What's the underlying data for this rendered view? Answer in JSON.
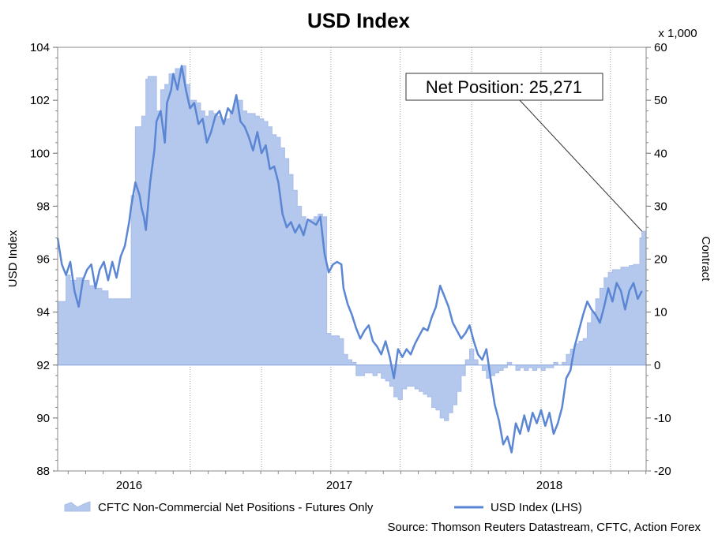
{
  "chart_data": {
    "type": "area",
    "title": "USD Index",
    "source": "Source: Thomson Reuters Datastream, CFTC, Action Forex",
    "left_axis": {
      "label": "USD Index",
      "min": 88,
      "max": 104,
      "ticks": [
        "88",
        "90",
        "92",
        "94",
        "96",
        "98",
        "100",
        "102",
        "104"
      ]
    },
    "right_axis": {
      "label": "Contract",
      "unit_label": "x 1,000",
      "min": -20,
      "max": 60,
      "ticks": [
        "-20",
        "-10",
        "0",
        "10",
        "20",
        "30",
        "40",
        "50",
        "60"
      ]
    },
    "x_axis": {
      "min": 2015.7,
      "max": 2018.5,
      "tick_labels": [
        "2016",
        "2017",
        "2018"
      ],
      "tick_values": [
        2016.0,
        2017.0,
        2018.0
      ]
    },
    "callout": {
      "label": "Net Position: 25,271",
      "value": 25.271,
      "date": 2018.48
    },
    "series": [
      {
        "name": "CFTC Non-Commercial Net Positions - Futures Only",
        "axis": "right",
        "style": "area",
        "color": "#b4c7ec",
        "edge": "#a9bde8",
        "points": [
          [
            2015.7,
            12.0
          ],
          [
            2015.74,
            17.0
          ],
          [
            2015.76,
            16.0
          ],
          [
            2015.79,
            16.5
          ],
          [
            2015.82,
            16.0
          ],
          [
            2015.85,
            15.0
          ],
          [
            2015.88,
            14.5
          ],
          [
            2015.91,
            14.0
          ],
          [
            2015.94,
            12.5
          ],
          [
            2015.97,
            12.5
          ],
          [
            2016.02,
            12.5
          ],
          [
            2016.03,
            12.5
          ],
          [
            2016.04,
            12.5
          ],
          [
            2016.05,
            32.0
          ],
          [
            2016.07,
            45.0
          ],
          [
            2016.09,
            45.0
          ],
          [
            2016.1,
            47.0
          ],
          [
            2016.12,
            54.0
          ],
          [
            2016.13,
            54.5
          ],
          [
            2016.15,
            54.5
          ],
          [
            2016.17,
            48.0
          ],
          [
            2016.19,
            52.0
          ],
          [
            2016.21,
            53.0
          ],
          [
            2016.23,
            55.0
          ],
          [
            2016.26,
            56.0
          ],
          [
            2016.29,
            56.5
          ],
          [
            2016.31,
            53.0
          ],
          [
            2016.33,
            50.0
          ],
          [
            2016.36,
            49.5
          ],
          [
            2016.38,
            48.0
          ],
          [
            2016.4,
            47.0
          ],
          [
            2016.42,
            48.0
          ],
          [
            2016.44,
            47.5
          ],
          [
            2016.46,
            47.0
          ],
          [
            2016.48,
            46.0
          ],
          [
            2016.5,
            46.5
          ],
          [
            2016.52,
            48.0
          ],
          [
            2016.54,
            50.0
          ],
          [
            2016.56,
            50.0
          ],
          [
            2016.58,
            48.0
          ],
          [
            2016.6,
            47.5
          ],
          [
            2016.62,
            47.5
          ],
          [
            2016.64,
            47.0
          ],
          [
            2016.66,
            46.5
          ],
          [
            2016.68,
            46.0
          ],
          [
            2016.7,
            45.0
          ],
          [
            2016.72,
            43.5
          ],
          [
            2016.74,
            43.0
          ],
          [
            2016.76,
            41.0
          ],
          [
            2016.78,
            39.0
          ],
          [
            2016.8,
            36.0
          ],
          [
            2016.82,
            33.0
          ],
          [
            2016.84,
            30.0
          ],
          [
            2016.86,
            28.0
          ],
          [
            2016.88,
            27.0
          ],
          [
            2016.9,
            27.5
          ],
          [
            2016.92,
            28.0
          ],
          [
            2016.94,
            28.5
          ],
          [
            2016.96,
            28.0
          ],
          [
            2016.98,
            6.0
          ],
          [
            2017.0,
            5.5
          ],
          [
            2017.02,
            5.5
          ],
          [
            2017.04,
            5.0
          ],
          [
            2017.06,
            2.0
          ],
          [
            2017.08,
            1.0
          ],
          [
            2017.1,
            0.5
          ],
          [
            2017.12,
            -2.0
          ],
          [
            2017.14,
            -2.0
          ],
          [
            2017.16,
            -1.5
          ],
          [
            2017.18,
            -1.5
          ],
          [
            2017.2,
            -2.0
          ],
          [
            2017.22,
            -1.5
          ],
          [
            2017.24,
            -2.5
          ],
          [
            2017.26,
            -3.0
          ],
          [
            2017.28,
            -4.0
          ],
          [
            2017.3,
            -6.0
          ],
          [
            2017.32,
            -6.5
          ],
          [
            2017.34,
            -4.5
          ],
          [
            2017.36,
            -4.0
          ],
          [
            2017.38,
            -4.0
          ],
          [
            2017.4,
            -4.5
          ],
          [
            2017.42,
            -5.0
          ],
          [
            2017.44,
            -5.5
          ],
          [
            2017.46,
            -6.0
          ],
          [
            2017.48,
            -8.0
          ],
          [
            2017.5,
            -8.5
          ],
          [
            2017.52,
            -10.0
          ],
          [
            2017.54,
            -10.5
          ],
          [
            2017.56,
            -9.0
          ],
          [
            2017.58,
            -7.5
          ],
          [
            2017.6,
            -5.0
          ],
          [
            2017.62,
            -2.0
          ],
          [
            2017.64,
            1.0
          ],
          [
            2017.66,
            3.0
          ],
          [
            2017.68,
            1.0
          ],
          [
            2017.7,
            0.0
          ],
          [
            2017.72,
            -1.0
          ],
          [
            2017.74,
            -2.5
          ],
          [
            2017.76,
            -2.0
          ],
          [
            2017.78,
            -1.5
          ],
          [
            2017.8,
            -1.0
          ],
          [
            2017.82,
            -0.5
          ],
          [
            2017.84,
            0.5
          ],
          [
            2017.86,
            0.0
          ],
          [
            2017.88,
            -1.0
          ],
          [
            2017.9,
            -0.5
          ],
          [
            2017.92,
            -1.0
          ],
          [
            2017.94,
            -0.5
          ],
          [
            2017.96,
            -1.0
          ],
          [
            2017.98,
            -0.5
          ],
          [
            2018.0,
            -1.0
          ],
          [
            2018.02,
            -0.5
          ],
          [
            2018.04,
            -0.5
          ],
          [
            2018.06,
            0.5
          ],
          [
            2018.08,
            0.0
          ],
          [
            2018.1,
            0.5
          ],
          [
            2018.12,
            2.0
          ],
          [
            2018.14,
            3.0
          ],
          [
            2018.16,
            4.0
          ],
          [
            2018.18,
            4.5
          ],
          [
            2018.2,
            5.0
          ],
          [
            2018.22,
            8.0
          ],
          [
            2018.24,
            10.0
          ],
          [
            2018.26,
            12.5
          ],
          [
            2018.28,
            14.5
          ],
          [
            2018.3,
            16.5
          ],
          [
            2018.32,
            17.5
          ],
          [
            2018.34,
            18.0
          ],
          [
            2018.36,
            18.0
          ],
          [
            2018.38,
            18.5
          ],
          [
            2018.4,
            18.5
          ],
          [
            2018.42,
            18.8
          ],
          [
            2018.44,
            19.0
          ],
          [
            2018.46,
            19.0
          ],
          [
            2018.47,
            24.0
          ],
          [
            2018.48,
            25.271
          ],
          [
            2018.5,
            25.271
          ]
        ]
      },
      {
        "name": "USD Index (LHS)",
        "axis": "left",
        "style": "line",
        "color": "#5b86d4",
        "points": [
          [
            2015.7,
            96.8
          ],
          [
            2015.72,
            95.8
          ],
          [
            2015.74,
            95.4
          ],
          [
            2015.76,
            95.9
          ],
          [
            2015.78,
            94.8
          ],
          [
            2015.8,
            94.2
          ],
          [
            2015.82,
            95.2
          ],
          [
            2015.84,
            95.6
          ],
          [
            2015.86,
            95.8
          ],
          [
            2015.88,
            94.9
          ],
          [
            2015.9,
            95.6
          ],
          [
            2015.92,
            95.9
          ],
          [
            2015.94,
            95.2
          ],
          [
            2015.96,
            95.9
          ],
          [
            2015.98,
            95.3
          ],
          [
            2016.0,
            96.1
          ],
          [
            2016.02,
            96.5
          ],
          [
            2016.04,
            97.4
          ],
          [
            2016.05,
            98.0
          ],
          [
            2016.07,
            98.9
          ],
          [
            2016.09,
            98.4
          ],
          [
            2016.1,
            97.9
          ],
          [
            2016.11,
            97.6
          ],
          [
            2016.12,
            97.1
          ],
          [
            2016.14,
            98.9
          ],
          [
            2016.16,
            100.1
          ],
          [
            2016.17,
            101.2
          ],
          [
            2016.19,
            101.6
          ],
          [
            2016.21,
            100.4
          ],
          [
            2016.22,
            101.9
          ],
          [
            2016.24,
            102.4
          ],
          [
            2016.25,
            103.0
          ],
          [
            2016.27,
            102.4
          ],
          [
            2016.29,
            103.3
          ],
          [
            2016.31,
            102.4
          ],
          [
            2016.33,
            101.7
          ],
          [
            2016.35,
            101.9
          ],
          [
            2016.37,
            101.1
          ],
          [
            2016.39,
            101.3
          ],
          [
            2016.41,
            100.4
          ],
          [
            2016.43,
            100.8
          ],
          [
            2016.45,
            101.4
          ],
          [
            2016.47,
            101.6
          ],
          [
            2016.49,
            101.1
          ],
          [
            2016.51,
            101.7
          ],
          [
            2016.53,
            101.5
          ],
          [
            2016.55,
            102.2
          ],
          [
            2016.57,
            101.2
          ],
          [
            2016.59,
            101.0
          ],
          [
            2016.61,
            100.6
          ],
          [
            2016.63,
            100.1
          ],
          [
            2016.65,
            100.8
          ],
          [
            2016.67,
            100.0
          ],
          [
            2016.69,
            100.3
          ],
          [
            2016.71,
            99.4
          ],
          [
            2016.73,
            99.5
          ],
          [
            2016.75,
            98.9
          ],
          [
            2016.77,
            97.7
          ],
          [
            2016.79,
            97.2
          ],
          [
            2016.81,
            97.4
          ],
          [
            2016.83,
            97.0
          ],
          [
            2016.85,
            97.3
          ],
          [
            2016.87,
            96.9
          ],
          [
            2016.89,
            97.5
          ],
          [
            2016.91,
            97.4
          ],
          [
            2016.93,
            97.3
          ],
          [
            2016.95,
            97.6
          ],
          [
            2016.97,
            96.2
          ],
          [
            2016.99,
            95.5
          ],
          [
            2017.01,
            95.8
          ],
          [
            2017.03,
            95.9
          ],
          [
            2017.05,
            95.8
          ],
          [
            2017.06,
            94.9
          ],
          [
            2017.08,
            94.3
          ],
          [
            2017.1,
            93.9
          ],
          [
            2017.12,
            93.4
          ],
          [
            2017.14,
            93.0
          ],
          [
            2017.16,
            93.3
          ],
          [
            2017.18,
            93.5
          ],
          [
            2017.2,
            92.9
          ],
          [
            2017.22,
            92.7
          ],
          [
            2017.24,
            92.4
          ],
          [
            2017.26,
            92.9
          ],
          [
            2017.28,
            92.3
          ],
          [
            2017.3,
            91.5
          ],
          [
            2017.32,
            92.6
          ],
          [
            2017.34,
            92.3
          ],
          [
            2017.36,
            92.6
          ],
          [
            2017.38,
            92.4
          ],
          [
            2017.4,
            92.8
          ],
          [
            2017.42,
            93.1
          ],
          [
            2017.44,
            93.4
          ],
          [
            2017.46,
            93.3
          ],
          [
            2017.48,
            93.8
          ],
          [
            2017.5,
            94.2
          ],
          [
            2017.52,
            95.0
          ],
          [
            2017.54,
            94.6
          ],
          [
            2017.56,
            94.2
          ],
          [
            2017.58,
            93.6
          ],
          [
            2017.6,
            93.3
          ],
          [
            2017.62,
            93.0
          ],
          [
            2017.64,
            93.2
          ],
          [
            2017.66,
            93.5
          ],
          [
            2017.68,
            92.9
          ],
          [
            2017.7,
            92.4
          ],
          [
            2017.72,
            92.2
          ],
          [
            2017.74,
            92.6
          ],
          [
            2017.76,
            91.5
          ],
          [
            2017.78,
            90.5
          ],
          [
            2017.8,
            89.9
          ],
          [
            2017.82,
            89.0
          ],
          [
            2017.84,
            89.3
          ],
          [
            2017.86,
            88.7
          ],
          [
            2017.88,
            89.8
          ],
          [
            2017.9,
            89.4
          ],
          [
            2017.92,
            90.1
          ],
          [
            2017.94,
            89.5
          ],
          [
            2017.96,
            90.2
          ],
          [
            2017.98,
            89.8
          ],
          [
            2018.0,
            90.3
          ],
          [
            2018.02,
            89.7
          ],
          [
            2018.04,
            90.2
          ],
          [
            2018.06,
            89.4
          ],
          [
            2018.08,
            89.8
          ],
          [
            2018.1,
            90.4
          ],
          [
            2018.12,
            91.5
          ],
          [
            2018.14,
            91.8
          ],
          [
            2018.16,
            92.7
          ],
          [
            2018.18,
            93.3
          ],
          [
            2018.2,
            93.9
          ],
          [
            2018.22,
            94.4
          ],
          [
            2018.24,
            94.1
          ],
          [
            2018.26,
            93.9
          ],
          [
            2018.28,
            93.6
          ],
          [
            2018.3,
            94.2
          ],
          [
            2018.32,
            94.9
          ],
          [
            2018.34,
            94.4
          ],
          [
            2018.36,
            95.1
          ],
          [
            2018.38,
            94.8
          ],
          [
            2018.4,
            94.1
          ],
          [
            2018.42,
            94.8
          ],
          [
            2018.44,
            95.1
          ],
          [
            2018.46,
            94.5
          ],
          [
            2018.48,
            94.8
          ]
        ]
      }
    ],
    "legend": [
      {
        "label": "CFTC Non-Commercial Net Positions - Futures Only",
        "kind": "area"
      },
      {
        "label": "USD Index (LHS)",
        "kind": "line"
      }
    ]
  }
}
